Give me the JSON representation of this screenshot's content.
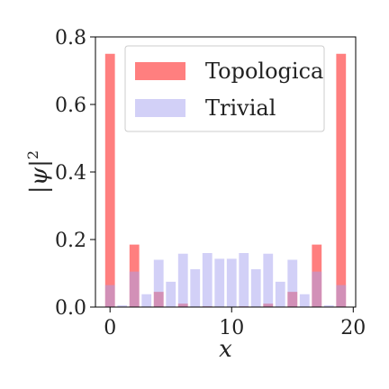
{
  "chart_data": {
    "type": "bar",
    "title": "",
    "xlabel": "x",
    "ylabel": "|ψ|²",
    "ylabel_base": "|ψ|",
    "ylabel_sup": "2",
    "xlim": [
      -1.2,
      20.2
    ],
    "ylim": [
      0,
      0.8
    ],
    "xticks": [
      0,
      10,
      20
    ],
    "xtick_labels": [
      "0",
      "10",
      "20"
    ],
    "yticks": [
      0.0,
      0.2,
      0.4,
      0.6,
      0.8
    ],
    "ytick_labels": [
      "0.0",
      "0.2",
      "0.4",
      "0.6",
      "0.8"
    ],
    "grid": false,
    "legend_position": "top-right",
    "x": [
      0,
      1,
      2,
      3,
      4,
      5,
      6,
      7,
      8,
      9,
      10,
      11,
      12,
      13,
      14,
      15,
      16,
      17,
      18,
      19
    ],
    "series": [
      {
        "name": "Topologica",
        "color": "#ff0000",
        "opacity": 0.5,
        "values": [
          0.75,
          0.0,
          0.185,
          0.0,
          0.045,
          0.0,
          0.01,
          0.0,
          0.002,
          0.0,
          0.0,
          0.002,
          0.0,
          0.01,
          0.0,
          0.045,
          0.0,
          0.185,
          0.0,
          0.75
        ]
      },
      {
        "name": "Trivial",
        "color": "#a5a1f0",
        "opacity": 0.5,
        "values": [
          0.065,
          0.005,
          0.105,
          0.038,
          0.14,
          0.075,
          0.158,
          0.112,
          0.16,
          0.143,
          0.143,
          0.16,
          0.112,
          0.158,
          0.075,
          0.14,
          0.038,
          0.105,
          0.005,
          0.065
        ]
      }
    ]
  }
}
